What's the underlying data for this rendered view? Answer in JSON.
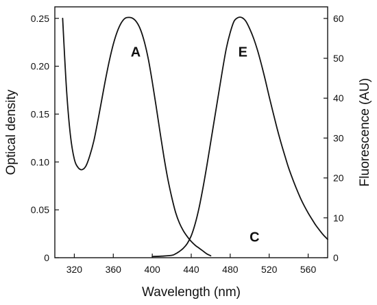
{
  "chart_data": {
    "type": "line",
    "xlabel": "Wavelength (nm)",
    "ylabel_left": "Optical density",
    "ylabel_right": "Fluorescence (AU)",
    "xlim": [
      300,
      580
    ],
    "ylim_left": [
      0,
      0.262
    ],
    "ylim_right": [
      0,
      62.9
    ],
    "x_ticks": [
      "320",
      "360",
      "400",
      "440",
      "480",
      "520",
      "560"
    ],
    "y_left_ticks": [
      "0",
      "0.05",
      "0.10",
      "0.15",
      "0.20",
      "0.25"
    ],
    "y_right_ticks": [
      "0",
      "10",
      "20",
      "30",
      "40",
      "50",
      "60"
    ],
    "grid": false,
    "series": [
      {
        "name": "A",
        "axis": "left",
        "x": [
          308,
          312,
          316,
          320,
          324,
          328,
          332,
          336,
          340,
          344,
          348,
          352,
          356,
          360,
          364,
          368,
          372,
          376,
          380,
          384,
          388,
          392,
          396,
          400,
          404,
          408,
          412,
          416,
          420,
          424,
          428,
          432,
          436,
          440,
          444,
          448,
          452,
          456,
          460
        ],
        "values": [
          0.25,
          0.175,
          0.128,
          0.103,
          0.094,
          0.092,
          0.096,
          0.107,
          0.122,
          0.142,
          0.164,
          0.186,
          0.206,
          0.223,
          0.236,
          0.245,
          0.25,
          0.251,
          0.25,
          0.246,
          0.238,
          0.225,
          0.207,
          0.184,
          0.158,
          0.131,
          0.105,
          0.082,
          0.063,
          0.047,
          0.036,
          0.028,
          0.022,
          0.017,
          0.013,
          0.01,
          0.007,
          0.004,
          0.002
        ]
      },
      {
        "name": "E",
        "axis": "right",
        "x": [
          400,
          410,
          420,
          424,
          428,
          432,
          436,
          440,
          444,
          448,
          452,
          456,
          460,
          464,
          468,
          472,
          476,
          480,
          484,
          488,
          492,
          496,
          500,
          504,
          508,
          512,
          516,
          520,
          524,
          528,
          532,
          536,
          540,
          544,
          548,
          552,
          556,
          560,
          564,
          568,
          572,
          576,
          580
        ],
        "values": [
          0.3,
          0.4,
          0.6,
          1,
          1.6,
          2.4,
          3.6,
          5.5,
          8.5,
          12.5,
          17.5,
          23,
          29,
          35,
          41,
          47,
          52.5,
          56.5,
          59.3,
          60.2,
          60.2,
          59.3,
          57.4,
          55,
          52,
          48.5,
          44.6,
          40.4,
          36.4,
          32.5,
          28.9,
          25.6,
          22.5,
          19.8,
          17.3,
          15,
          13,
          11.2,
          9.6,
          8.1,
          6.8,
          5.6,
          4.6
        ]
      }
    ],
    "annotations": [
      {
        "text": "A",
        "x": 383,
        "y": 0.21,
        "axis": "left"
      },
      {
        "text": "E",
        "x": 493,
        "y": 0.21,
        "axis": "left"
      },
      {
        "text": "C",
        "x": 505,
        "y": 0.017,
        "axis": "left"
      }
    ]
  }
}
